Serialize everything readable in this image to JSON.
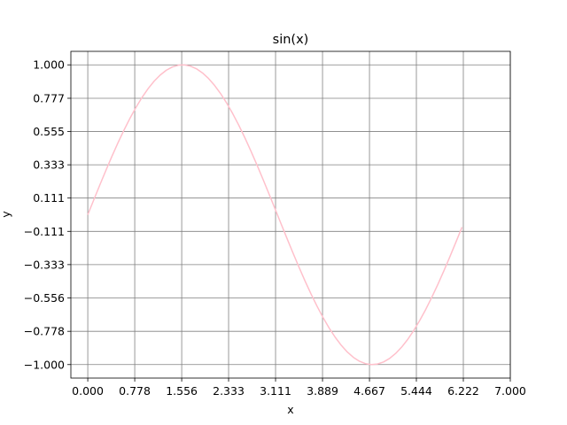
{
  "chart_data": {
    "type": "line",
    "title": "sin(x)",
    "xlabel": "x",
    "ylabel": "y",
    "xlim": [
      -0.28,
      7.0
    ],
    "ylim": [
      -1.09,
      1.09
    ],
    "grid": true,
    "x_ticks": [
      "0.000",
      "0.778",
      "1.556",
      "2.333",
      "3.111",
      "3.889",
      "4.667",
      "5.444",
      "6.222",
      "7.000"
    ],
    "y_ticks": [
      "1.000",
      "0.777",
      "0.555",
      "0.333",
      "0.111",
      "−0.111",
      "−0.333",
      "−0.556",
      "−0.778",
      "−1.000"
    ],
    "series": [
      {
        "color": "#ffc0cb",
        "x_start": 0.0,
        "x_end": 6.2,
        "x_step": 0.1,
        "function": "sin"
      }
    ]
  }
}
